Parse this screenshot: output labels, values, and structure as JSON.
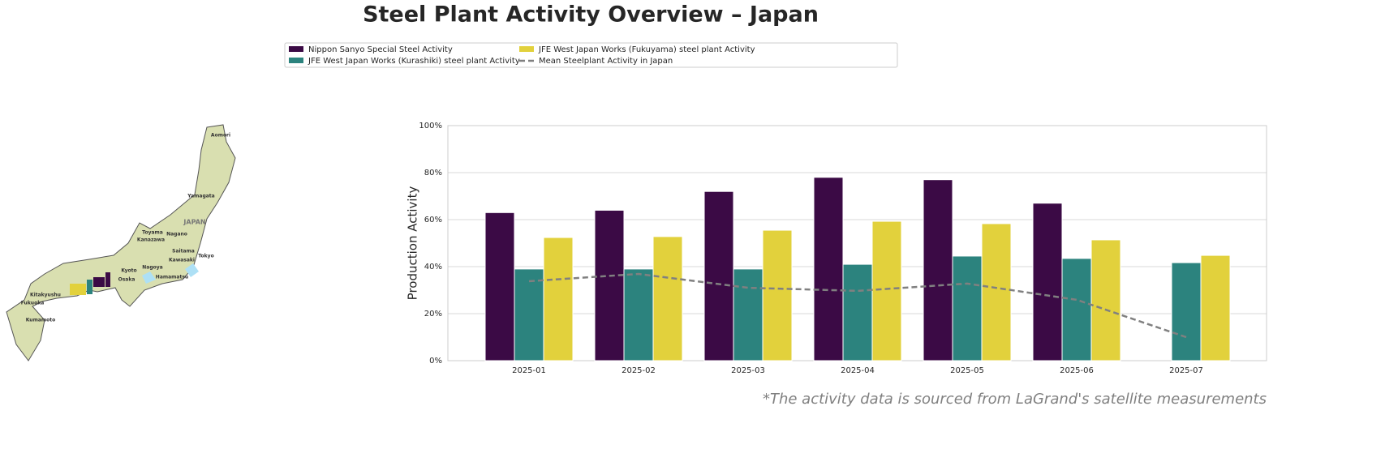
{
  "chart_data": {
    "type": "bar",
    "title": "Steel Plant Activity Overview – Japan",
    "y_label": "Production Activity",
    "footnote": "*The activity data is sourced from LaGrand's satellite measurements",
    "categories": [
      "2025-01",
      "2025-02",
      "2025-03",
      "2025-04",
      "2025-05",
      "2025-06",
      "2025-07"
    ],
    "series": [
      {
        "name": "Nippon Sanyo Special Steel Activity",
        "color": "#3b0a45",
        "values": [
          63,
          64,
          72,
          78,
          77,
          67,
          null
        ]
      },
      {
        "name": "JFE West Japan Works (Kurashiki) steel plant Activity",
        "color": "#2c837e",
        "values": [
          39,
          39,
          39,
          41,
          44.5,
          43.5,
          41.7
        ]
      },
      {
        "name": "JFE West Japan Works (Fukuyama) steel plant Activity",
        "color": "#e2d13c",
        "values": [
          52.4,
          52.8,
          55.5,
          59.3,
          58.3,
          51.4,
          44.8
        ]
      }
    ],
    "mean_line": {
      "name": "Mean Steelplant Activity in Japan",
      "color": "#808080",
      "values": [
        33.8,
        36.9,
        31,
        29.7,
        32.8,
        25.9,
        10
      ]
    },
    "ylim": [
      0,
      100
    ],
    "yticks": [
      {
        "value": 0,
        "label": "0%"
      },
      {
        "value": 20,
        "label": "20%"
      },
      {
        "value": 40,
        "label": "40%"
      },
      {
        "value": 60,
        "label": "60%"
      },
      {
        "value": 80,
        "label": "80%"
      },
      {
        "value": 100,
        "label": "100%"
      }
    ],
    "grid": true
  },
  "map": {
    "labels": [
      "Aomori",
      "Yamagata",
      "JAPAN",
      "Toyama",
      "Nagano",
      "Kanazawa",
      "Saitama",
      "Tokyo",
      "Kawasaki",
      "Nagoya",
      "Kyoto",
      "Osaka",
      "Hamamatsu",
      "Kitakyushu",
      "Fukuoka",
      "Kumamoto"
    ]
  }
}
